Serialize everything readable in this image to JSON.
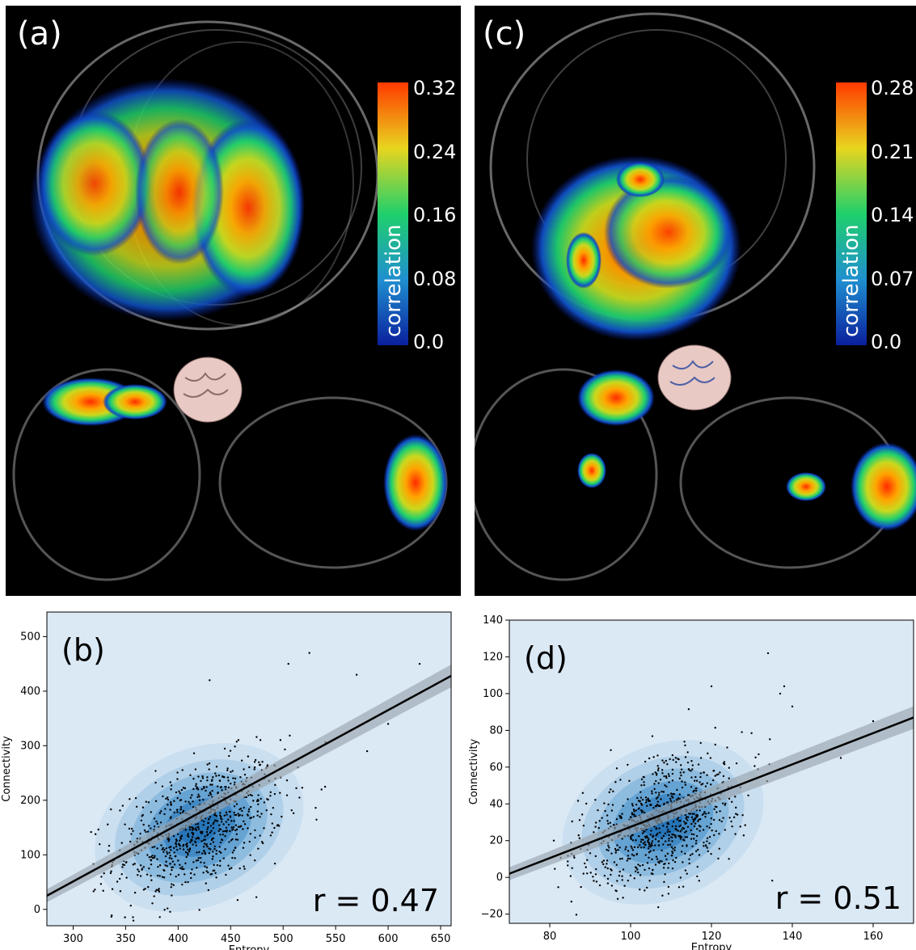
{
  "panels": {
    "a": {
      "label": "(a)",
      "colorbar": {
        "title": "correlation",
        "ticks": [
          "0.32",
          "0.24",
          "0.16",
          "0.08",
          "0.0"
        ]
      }
    },
    "c": {
      "label": "(c)",
      "colorbar": {
        "title": "correlation",
        "ticks": [
          "0.28",
          "0.21",
          "0.14",
          "0.07",
          "0.0"
        ]
      }
    }
  },
  "colors": {
    "heat_low": "#0a1f9e",
    "heat_mid": "#1fd06c",
    "heat_high": "#ff2a00",
    "kde_light": "#dbe9f5",
    "kde_dark": "#1f6fb4",
    "line": "#000000",
    "band": "#9aa5ad"
  },
  "chart_data": [
    {
      "type": "scatter",
      "panel_label": "(b)",
      "xlabel": "Entropy",
      "ylabel": "Connectivity",
      "xlim": [
        275,
        660
      ],
      "ylim": [
        -30,
        545
      ],
      "xticks": [
        300,
        350,
        400,
        450,
        500,
        550,
        600,
        650
      ],
      "yticks": [
        0,
        100,
        200,
        300,
        400,
        500
      ],
      "grid": false,
      "annotation": "r = 0.47",
      "r": 0.47,
      "regression": {
        "x": [
          275,
          660
        ],
        "y": [
          25,
          428
        ]
      },
      "cloud": {
        "x_center": 420,
        "x_sd": 40,
        "y_center": 150,
        "y_sd": 55,
        "n": 800,
        "outliers": [
          [
            630,
            450
          ],
          [
            600,
            340
          ],
          [
            580,
            290
          ],
          [
            525,
            470
          ],
          [
            505,
            450
          ],
          [
            430,
            420
          ],
          [
            570,
            430
          ]
        ]
      }
    },
    {
      "type": "scatter",
      "panel_label": "(d)",
      "xlabel": "Entropy",
      "ylabel": "Connectivity",
      "xlim": [
        70,
        170
      ],
      "ylim": [
        -25,
        140
      ],
      "xticks": [
        80,
        100,
        120,
        140,
        160
      ],
      "yticks": [
        -20,
        0,
        20,
        40,
        60,
        80,
        100,
        120,
        140
      ],
      "grid": false,
      "annotation": "r = 0.51",
      "r": 0.51,
      "regression": {
        "x": [
          70,
          170
        ],
        "y": [
          2,
          87
        ]
      },
      "cloud": {
        "x_center": 108,
        "x_sd": 10,
        "y_center": 30,
        "y_sd": 16,
        "n": 800,
        "outliers": [
          [
            134,
            122
          ],
          [
            138,
            104
          ],
          [
            137,
            100
          ],
          [
            140,
            93
          ],
          [
            120,
            104
          ],
          [
            152,
            65
          ],
          [
            160,
            85
          ],
          [
            81,
            20
          ]
        ]
      }
    }
  ]
}
